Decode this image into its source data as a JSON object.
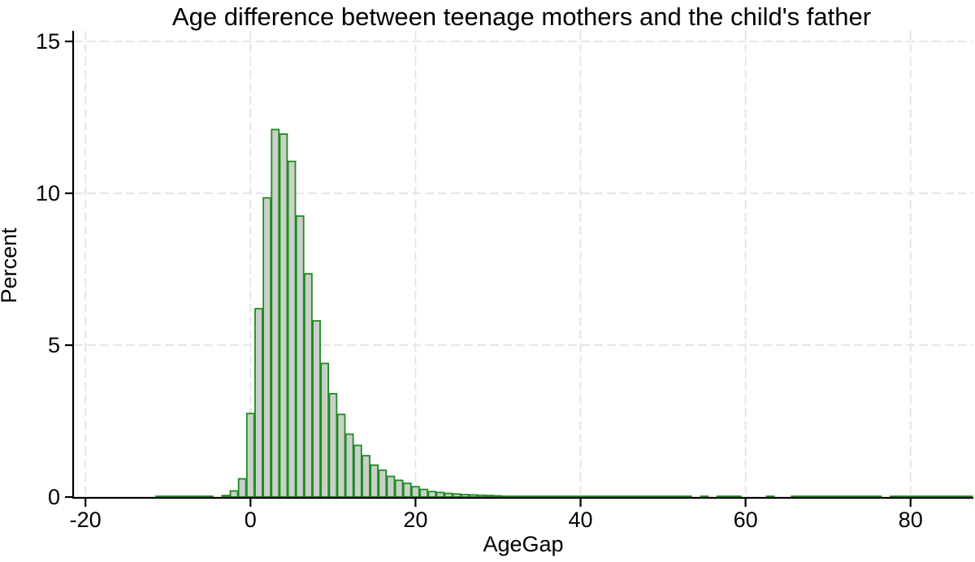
{
  "chart_data": {
    "type": "bar",
    "subtype": "histogram",
    "title": "Age difference between teenage mothers and the child's father",
    "xlabel": "AgeGap",
    "ylabel": "Percent",
    "x_ticks": [
      -20,
      0,
      20,
      40,
      60,
      80
    ],
    "y_ticks": [
      0,
      5,
      10,
      15
    ],
    "xlim": [
      -21.5,
      87.6
    ],
    "ylim": [
      0,
      15.35
    ],
    "bin_width": 1,
    "grid": "dashed light-gray gridlines at every x and y tick",
    "legend_position": "none",
    "bins": [
      [
        -11,
        0.025
      ],
      [
        -10,
        0.025
      ],
      [
        -9,
        0.025
      ],
      [
        -8,
        0.025
      ],
      [
        -7,
        0.025
      ],
      [
        -6,
        0.025
      ],
      [
        -5,
        0.025
      ],
      [
        -3,
        0.05
      ],
      [
        -2,
        0.2
      ],
      [
        -1,
        0.6
      ],
      [
        0,
        2.75
      ],
      [
        1,
        6.2
      ],
      [
        2,
        9.85
      ],
      [
        3,
        12.1
      ],
      [
        4,
        11.95
      ],
      [
        5,
        11.05
      ],
      [
        6,
        9.25
      ],
      [
        7,
        7.35
      ],
      [
        8,
        5.8
      ],
      [
        9,
        4.4
      ],
      [
        10,
        3.4
      ],
      [
        11,
        2.72
      ],
      [
        12,
        2.07
      ],
      [
        13,
        1.7
      ],
      [
        14,
        1.36
      ],
      [
        15,
        1.05
      ],
      [
        16,
        0.88
      ],
      [
        17,
        0.68
      ],
      [
        18,
        0.55
      ],
      [
        19,
        0.45
      ],
      [
        20,
        0.34
      ],
      [
        21,
        0.25
      ],
      [
        22,
        0.18
      ],
      [
        23,
        0.15
      ],
      [
        24,
        0.12
      ],
      [
        25,
        0.1
      ],
      [
        26,
        0.08
      ],
      [
        27,
        0.07
      ],
      [
        28,
        0.06
      ],
      [
        29,
        0.05
      ],
      [
        30,
        0.04
      ],
      [
        31,
        0.025
      ],
      [
        32,
        0.025
      ],
      [
        33,
        0.025
      ],
      [
        34,
        0.025
      ],
      [
        35,
        0.025
      ],
      [
        36,
        0.025
      ],
      [
        37,
        0.025
      ],
      [
        38,
        0.025
      ],
      [
        39,
        0.025
      ],
      [
        40,
        0.025
      ],
      [
        41,
        0.025
      ],
      [
        42,
        0.025
      ],
      [
        43,
        0.025
      ],
      [
        44,
        0.025
      ],
      [
        45,
        0.025
      ],
      [
        46,
        0.025
      ],
      [
        47,
        0.025
      ],
      [
        48,
        0.025
      ],
      [
        49,
        0.025
      ],
      [
        50,
        0.025
      ],
      [
        51,
        0.025
      ],
      [
        52,
        0.025
      ],
      [
        53,
        0.025
      ],
      [
        55,
        0.025
      ],
      [
        57,
        0.025
      ],
      [
        58,
        0.025
      ],
      [
        59,
        0.025
      ],
      [
        63,
        0.025
      ],
      [
        66,
        0.025
      ],
      [
        67,
        0.025
      ],
      [
        68,
        0.025
      ],
      [
        69,
        0.025
      ],
      [
        70,
        0.025
      ],
      [
        71,
        0.025
      ],
      [
        72,
        0.025
      ],
      [
        73,
        0.025
      ],
      [
        74,
        0.025
      ],
      [
        75,
        0.025
      ],
      [
        76,
        0.025
      ],
      [
        78,
        0.025
      ],
      [
        79,
        0.025
      ],
      [
        80,
        0.025
      ],
      [
        81,
        0.025
      ],
      [
        82,
        0.025
      ],
      [
        83,
        0.025
      ],
      [
        84,
        0.025
      ],
      [
        85,
        0.025
      ],
      [
        86,
        0.025
      ],
      [
        87,
        0.025
      ]
    ]
  },
  "colors": {
    "background": "#ffffff",
    "bar_fill": "#c9d0c9",
    "bar_stroke": "#1f8b1f",
    "gridline": "#e3e3e3",
    "axis": "#000000",
    "text": "#000000"
  }
}
